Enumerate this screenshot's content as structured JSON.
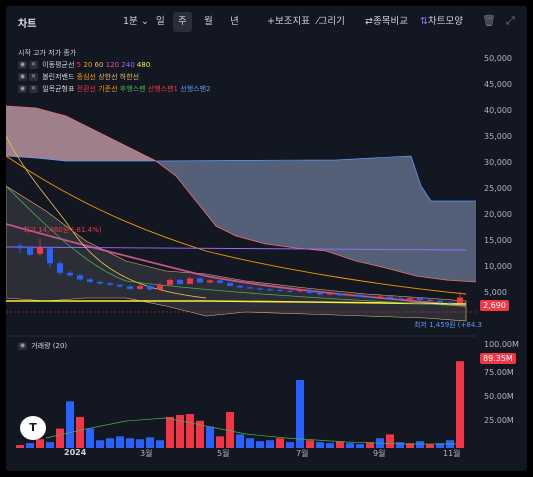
{
  "title": "차트",
  "toolbar": {
    "interval": "1분",
    "periods": [
      "일",
      "주",
      "월",
      "년"
    ],
    "active_period": "주",
    "indicators": "보조지표",
    "draw": "그리기",
    "compare": "종목비교",
    "style": "차트모양"
  },
  "legend": {
    "ohlc": "시작 고가 저가 종가",
    "ma_label": "이동평균선",
    "ma_values": [
      "5",
      "20",
      "60",
      "120",
      "240",
      "480"
    ],
    "bb_label": "볼린저밴드",
    "bb_values": [
      "중심선",
      "상한선",
      "하한선"
    ],
    "ichi_label": "일목균형표",
    "ichi_values": [
      "전환선",
      "기준선",
      "후행스팬",
      "선행스팬1",
      "선행스팬2"
    ],
    "vol_label": "거래량 (20)"
  },
  "price_axis": [
    "50,000",
    "45,000",
    "40,000",
    "35,000",
    "30,000",
    "25,000",
    "20,000",
    "15,000",
    "10,000",
    "5,000"
  ],
  "volume_axis": [
    "100.00M",
    "75.00M",
    "50.00M",
    "25.00M"
  ],
  "x_axis": [
    "2024",
    "3월",
    "5월",
    "7월",
    "9월",
    "11월"
  ],
  "annotations": {
    "high": "최고 14,480원 (-81.4%)",
    "low": "최저 1,459원 (+84.3"
  },
  "price_tag": "2,690",
  "volume_tag": "89.35M",
  "colors": {
    "up": "#f23645",
    "down": "#2962ff",
    "bg": "#131722"
  },
  "chart_data": {
    "type": "candlestick",
    "price_ylim": [
      0,
      52000
    ],
    "volume_ylim": [
      0,
      105000000
    ],
    "candles": [
      {
        "o": 13000,
        "c": 12500,
        "h": 13600,
        "l": 11500
      },
      {
        "o": 12600,
        "c": 11200,
        "h": 13000,
        "l": 10800
      },
      {
        "o": 11400,
        "c": 12600,
        "h": 14480,
        "l": 11000
      },
      {
        "o": 12500,
        "c": 9500,
        "h": 12800,
        "l": 8600
      },
      {
        "o": 9500,
        "c": 7600,
        "h": 10000,
        "l": 7200
      },
      {
        "o": 7600,
        "c": 7100,
        "h": 8000,
        "l": 6700
      },
      {
        "o": 7100,
        "c": 6300,
        "h": 7400,
        "l": 6000
      },
      {
        "o": 6300,
        "c": 5800,
        "h": 6600,
        "l": 5500
      },
      {
        "o": 5800,
        "c": 5500,
        "h": 6000,
        "l": 5200
      },
      {
        "o": 5500,
        "c": 5200,
        "h": 5800,
        "l": 5000
      },
      {
        "o": 5200,
        "c": 4900,
        "h": 5400,
        "l": 4600
      },
      {
        "o": 4900,
        "c": 4400,
        "h": 5100,
        "l": 4200
      },
      {
        "o": 4400,
        "c": 5000,
        "h": 5400,
        "l": 4200
      },
      {
        "o": 5000,
        "c": 4300,
        "h": 5200,
        "l": 4000
      },
      {
        "o": 4300,
        "c": 5200,
        "h": 5600,
        "l": 4100
      },
      {
        "o": 5200,
        "c": 6200,
        "h": 6500,
        "l": 5000
      },
      {
        "o": 6200,
        "c": 5400,
        "h": 6400,
        "l": 5200
      },
      {
        "o": 5400,
        "c": 6500,
        "h": 6800,
        "l": 5300
      },
      {
        "o": 6500,
        "c": 5700,
        "h": 6700,
        "l": 5500
      },
      {
        "o": 5700,
        "c": 6100,
        "h": 6300,
        "l": 5500
      },
      {
        "o": 6100,
        "c": 5600,
        "h": 6200,
        "l": 5400
      },
      {
        "o": 5600,
        "c": 5000,
        "h": 5800,
        "l": 4900
      },
      {
        "o": 5000,
        "c": 4700,
        "h": 5200,
        "l": 4500
      },
      {
        "o": 4700,
        "c": 4500,
        "h": 4900,
        "l": 4300
      },
      {
        "o": 4500,
        "c": 4300,
        "h": 4700,
        "l": 4100
      },
      {
        "o": 4300,
        "c": 4200,
        "h": 4500,
        "l": 4000
      },
      {
        "o": 4200,
        "c": 4000,
        "h": 4400,
        "l": 3800
      },
      {
        "o": 4000,
        "c": 3900,
        "h": 4200,
        "l": 3700
      },
      {
        "o": 3900,
        "c": 4100,
        "h": 4400,
        "l": 3700
      },
      {
        "o": 4100,
        "c": 3600,
        "h": 4300,
        "l": 3400
      },
      {
        "o": 3600,
        "c": 3300,
        "h": 3800,
        "l": 3100
      },
      {
        "o": 3300,
        "c": 3500,
        "h": 3700,
        "l": 3100
      },
      {
        "o": 3500,
        "c": 3100,
        "h": 3600,
        "l": 2900
      },
      {
        "o": 3100,
        "c": 3300,
        "h": 3500,
        "l": 2900
      },
      {
        "o": 3300,
        "c": 2900,
        "h": 3400,
        "l": 2700
      },
      {
        "o": 2900,
        "c": 2700,
        "h": 3100,
        "l": 2500
      },
      {
        "o": 2700,
        "c": 2900,
        "h": 3200,
        "l": 2500
      },
      {
        "o": 2900,
        "c": 2500,
        "h": 3000,
        "l": 2300
      },
      {
        "o": 2500,
        "c": 2300,
        "h": 2700,
        "l": 2100
      },
      {
        "o": 2300,
        "c": 2600,
        "h": 2800,
        "l": 2200
      },
      {
        "o": 2600,
        "c": 2200,
        "h": 2700,
        "l": 2000
      },
      {
        "o": 2200,
        "c": 2000,
        "h": 2400,
        "l": 1800
      },
      {
        "o": 2000,
        "c": 1700,
        "h": 2200,
        "l": 1459
      },
      {
        "o": 1700,
        "c": 1600,
        "h": 1900,
        "l": 1500
      },
      {
        "o": 1600,
        "c": 2690,
        "h": 3800,
        "l": 1500
      }
    ],
    "volumes": [
      3,
      5,
      9,
      6,
      20,
      48,
      32,
      20,
      8,
      10,
      12,
      10,
      9,
      11,
      8,
      32,
      34,
      35,
      28,
      22,
      12,
      37,
      14,
      10,
      7,
      8,
      10,
      6,
      70,
      8,
      6,
      5,
      7,
      5,
      4,
      6,
      10,
      14,
      6,
      5,
      7,
      4,
      5,
      8,
      89.35
    ],
    "volume_up": [
      1,
      0,
      1,
      0,
      1,
      0,
      1,
      0,
      0,
      0,
      0,
      0,
      0,
      0,
      0,
      1,
      1,
      1,
      1,
      0,
      1,
      1,
      0,
      0,
      0,
      0,
      1,
      0,
      0,
      1,
      0,
      0,
      1,
      0,
      0,
      1,
      0,
      1,
      0,
      1,
      0,
      1,
      0,
      0,
      1
    ]
  }
}
